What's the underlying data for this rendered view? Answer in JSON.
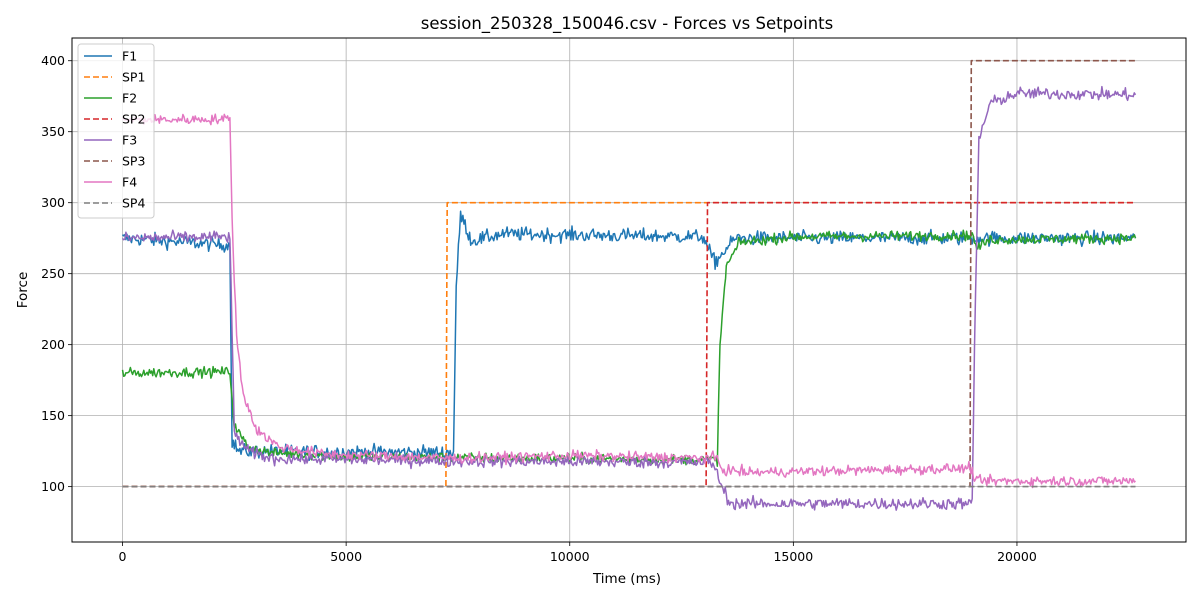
{
  "chart_data": {
    "type": "line",
    "title": "session_250328_150046.csv - Forces vs Setpoints",
    "xlabel": "Time (ms)",
    "ylabel": "Force",
    "xlim": [
      -1130,
      23780
    ],
    "ylim": [
      61,
      416
    ],
    "x_ticks": [
      0,
      5000,
      10000,
      15000,
      20000
    ],
    "y_ticks": [
      100,
      150,
      200,
      250,
      300,
      350,
      400
    ],
    "grid": true,
    "legend_position": "upper-left",
    "series": [
      {
        "name": "F1",
        "color": "#1f77b4",
        "dash": "solid",
        "noise": 3.5,
        "points": [
          [
            0,
            275
          ],
          [
            2400,
            270
          ],
          [
            2450,
            132
          ],
          [
            2600,
            125
          ],
          [
            7400,
            124
          ],
          [
            7460,
            240
          ],
          [
            7560,
            292
          ],
          [
            7800,
            273
          ],
          [
            8500,
            278
          ],
          [
            13000,
            276
          ],
          [
            13050,
            270
          ],
          [
            13250,
            258
          ],
          [
            13700,
            275
          ],
          [
            22650,
            275
          ]
        ]
      },
      {
        "name": "SP1",
        "color": "#ff7f0e",
        "dash": "dashed",
        "noise": 0,
        "points": [
          [
            0,
            100
          ],
          [
            7230,
            100
          ],
          [
            7260,
            300
          ],
          [
            22650,
            300
          ]
        ]
      },
      {
        "name": "F2",
        "color": "#2ca02c",
        "dash": "solid",
        "noise": 2.5,
        "points": [
          [
            0,
            180
          ],
          [
            2400,
            181
          ],
          [
            2500,
            143
          ],
          [
            2800,
            128
          ],
          [
            3300,
            124
          ],
          [
            5000,
            121
          ],
          [
            13300,
            119
          ],
          [
            13360,
            200
          ],
          [
            13500,
            255
          ],
          [
            13800,
            272
          ],
          [
            15000,
            276
          ],
          [
            19000,
            277
          ],
          [
            19100,
            268
          ],
          [
            19400,
            274
          ],
          [
            22650,
            275
          ]
        ]
      },
      {
        "name": "SP2",
        "color": "#d62728",
        "dash": "dashed",
        "noise": 0,
        "points": [
          [
            0,
            100
          ],
          [
            13050,
            100
          ],
          [
            13080,
            300
          ],
          [
            22650,
            300
          ]
        ]
      },
      {
        "name": "F3",
        "color": "#9467bd",
        "dash": "solid",
        "noise": 3,
        "points": [
          [
            0,
            275
          ],
          [
            2400,
            276
          ],
          [
            2500,
            138
          ],
          [
            2800,
            125
          ],
          [
            3300,
            120
          ],
          [
            5000,
            119
          ],
          [
            7500,
            118
          ],
          [
            13200,
            117
          ],
          [
            13400,
            100
          ],
          [
            13600,
            88
          ],
          [
            19000,
            88
          ],
          [
            19050,
            200
          ],
          [
            19150,
            345
          ],
          [
            19400,
            370
          ],
          [
            20000,
            377
          ],
          [
            22650,
            376
          ]
        ]
      },
      {
        "name": "SP3",
        "color": "#8c564b",
        "dash": "dashed",
        "noise": 0,
        "points": [
          [
            0,
            100
          ],
          [
            18950,
            100
          ],
          [
            18980,
            400
          ],
          [
            22650,
            400
          ]
        ]
      },
      {
        "name": "F4",
        "color": "#e377c2",
        "dash": "solid",
        "noise": 2.5,
        "points": [
          [
            0,
            358
          ],
          [
            2400,
            359
          ],
          [
            2450,
            290
          ],
          [
            2550,
            205
          ],
          [
            2700,
            165
          ],
          [
            3000,
            140
          ],
          [
            3500,
            128
          ],
          [
            4500,
            123
          ],
          [
            7500,
            120
          ],
          [
            10000,
            122
          ],
          [
            13300,
            120
          ],
          [
            13400,
            112
          ],
          [
            14000,
            110
          ],
          [
            19000,
            113
          ],
          [
            19050,
            104
          ],
          [
            22650,
            104
          ]
        ]
      },
      {
        "name": "SP4",
        "color": "#7f7f7f",
        "dash": "dashed",
        "noise": 0,
        "points": [
          [
            0,
            100
          ],
          [
            22650,
            100
          ]
        ]
      }
    ]
  }
}
